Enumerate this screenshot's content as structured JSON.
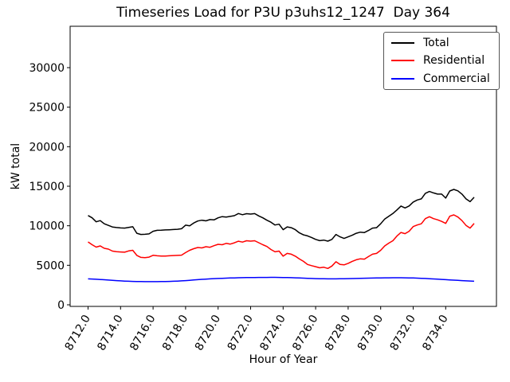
{
  "window": {
    "kind": "matplotlib-figure"
  },
  "chart_data": {
    "type": "line",
    "title": "Timeseries Load for P3U p3uhs12_1247  Day 364",
    "xlabel": "Hour of Year",
    "ylabel": "kW total",
    "x_start": 8712.0,
    "x_step": 0.25,
    "xlim": [
      8710.9,
      8737.1
    ],
    "ylim": [
      -200,
      35230
    ],
    "grid": false,
    "legend_position": "upper right",
    "xticks": [
      "8712.0",
      "8714.0",
      "8716.0",
      "8718.0",
      "8720.0",
      "8722.0",
      "8724.0",
      "8726.0",
      "8728.0",
      "8730.0",
      "8732.0",
      "8734.0"
    ],
    "xtick_rotation": 60,
    "yticks": [
      0,
      5000,
      10000,
      15000,
      20000,
      25000,
      30000
    ],
    "series": [
      {
        "name": "Total",
        "color": "#000000",
        "values": [
          11300,
          11000,
          10500,
          10650,
          10250,
          10050,
          9850,
          9780,
          9720,
          9700,
          9800,
          9880,
          9050,
          8900,
          8920,
          8970,
          9300,
          9420,
          9430,
          9470,
          9490,
          9520,
          9550,
          9620,
          10080,
          10000,
          10350,
          10600,
          10700,
          10620,
          10780,
          10740,
          11000,
          11150,
          11100,
          11180,
          11280,
          11550,
          11400,
          11530,
          11480,
          11540,
          11250,
          11000,
          10700,
          10450,
          10100,
          10200,
          9500,
          9860,
          9750,
          9500,
          9100,
          8850,
          8720,
          8520,
          8280,
          8110,
          8180,
          8050,
          8280,
          8900,
          8600,
          8400,
          8600,
          8800,
          9050,
          9190,
          9140,
          9400,
          9700,
          9750,
          10250,
          10850,
          11200,
          11550,
          12000,
          12490,
          12250,
          12500,
          13000,
          13260,
          13400,
          14100,
          14340,
          14150,
          14000,
          14000,
          13500,
          14400,
          14600,
          14420,
          14000,
          13400,
          13050,
          13600
        ]
      },
      {
        "name": "Residential",
        "color": "#ff0000",
        "values": [
          7950,
          7600,
          7300,
          7450,
          7150,
          7050,
          6800,
          6720,
          6680,
          6650,
          6820,
          6900,
          6250,
          6000,
          5970,
          6030,
          6260,
          6200,
          6170,
          6160,
          6200,
          6230,
          6250,
          6280,
          6600,
          6900,
          7100,
          7250,
          7200,
          7350,
          7280,
          7480,
          7650,
          7600,
          7770,
          7680,
          7840,
          8040,
          7930,
          8100,
          8050,
          8100,
          7850,
          7600,
          7380,
          7000,
          6700,
          6800,
          6150,
          6500,
          6400,
          6150,
          5800,
          5500,
          5100,
          4950,
          4820,
          4680,
          4750,
          4600,
          4900,
          5450,
          5100,
          5050,
          5250,
          5500,
          5700,
          5820,
          5780,
          6100,
          6400,
          6500,
          6900,
          7450,
          7800,
          8100,
          8700,
          9150,
          9000,
          9300,
          9900,
          10100,
          10250,
          10900,
          11140,
          10900,
          10750,
          10550,
          10300,
          11200,
          11380,
          11100,
          10650,
          10050,
          9700,
          10300
        ]
      },
      {
        "name": "Commercial",
        "color": "#0000ff",
        "values": [
          3280,
          3260,
          3230,
          3200,
          3170,
          3130,
          3100,
          3060,
          3030,
          3000,
          2980,
          2960,
          2950,
          2940,
          2930,
          2930,
          2930,
          2930,
          2940,
          2950,
          2960,
          2980,
          3000,
          3030,
          3060,
          3100,
          3140,
          3180,
          3220,
          3250,
          3280,
          3310,
          3330,
          3350,
          3370,
          3390,
          3400,
          3420,
          3430,
          3440,
          3450,
          3450,
          3460,
          3460,
          3460,
          3470,
          3470,
          3460,
          3450,
          3440,
          3430,
          3410,
          3390,
          3370,
          3350,
          3330,
          3310,
          3300,
          3290,
          3280,
          3280,
          3280,
          3290,
          3300,
          3310,
          3320,
          3330,
          3340,
          3360,
          3370,
          3380,
          3390,
          3400,
          3410,
          3410,
          3420,
          3420,
          3420,
          3410,
          3400,
          3390,
          3370,
          3350,
          3330,
          3300,
          3270,
          3240,
          3210,
          3180,
          3150,
          3120,
          3090,
          3060,
          3030,
          3010,
          2980
        ]
      }
    ]
  }
}
